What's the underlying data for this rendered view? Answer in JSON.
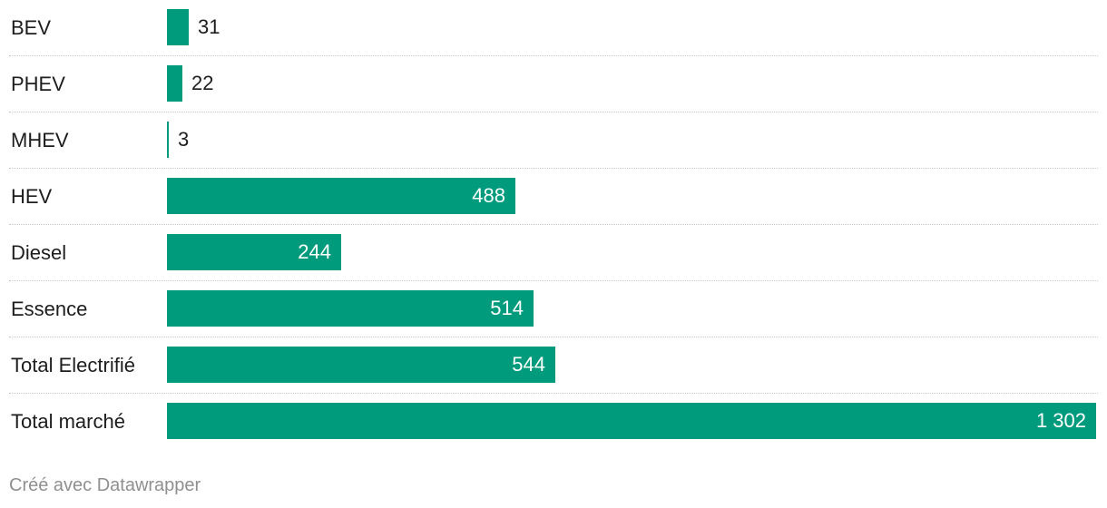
{
  "chart_data": {
    "type": "bar",
    "orientation": "horizontal",
    "categories": [
      "BEV",
      "PHEV",
      "MHEV",
      "HEV",
      "Diesel",
      "Essence",
      "Total Electrifié",
      "Total marché"
    ],
    "values": [
      31,
      22,
      3,
      488,
      244,
      514,
      544,
      1302
    ],
    "value_labels": [
      "31",
      "22",
      "3",
      "488",
      "244",
      "514",
      "544",
      "1 302"
    ],
    "xlim": [
      0,
      1302
    ],
    "bar_color": "#009b7d",
    "grid": false
  },
  "footer": {
    "credit": "Créé avec Datawrapper"
  }
}
